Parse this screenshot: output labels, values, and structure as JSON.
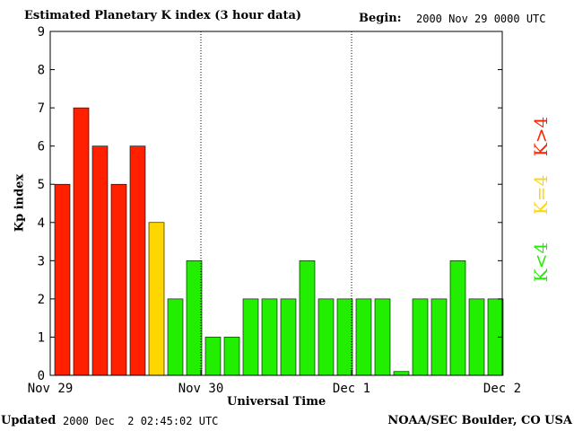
{
  "header": {
    "title": "Estimated Planetary K index (3 hour data)",
    "begin_label": "Begin:",
    "begin_value": "2000 Nov 29 0000 UTC"
  },
  "footer": {
    "updated_label": "Updated",
    "updated_value": "2000 Dec  2 02:45:02 UTC",
    "agency": "NOAA/SEC Boulder, CO USA"
  },
  "colors": {
    "high": "#ff2000",
    "moderate": "#ffd700",
    "low": "#22ee00"
  },
  "legend": {
    "high": "K>4",
    "moderate": "K=4",
    "low": "K<4"
  },
  "chart_data": {
    "type": "bar",
    "xlabel": "Universal Time",
    "ylabel": "Kp index",
    "ylim": [
      0,
      9
    ],
    "yticks": [
      0,
      1,
      2,
      3,
      4,
      5,
      6,
      7,
      8,
      9
    ],
    "day_labels": [
      "Nov 29",
      "Nov 30",
      "Dec 1",
      "Dec 2"
    ],
    "bars_per_day": 8,
    "values": [
      5,
      7,
      6,
      5,
      6,
      4,
      2,
      3,
      1,
      1,
      2,
      2,
      2,
      3,
      2,
      2,
      2,
      2,
      0.1,
      2,
      2,
      3,
      2,
      2
    ],
    "grid": false
  }
}
